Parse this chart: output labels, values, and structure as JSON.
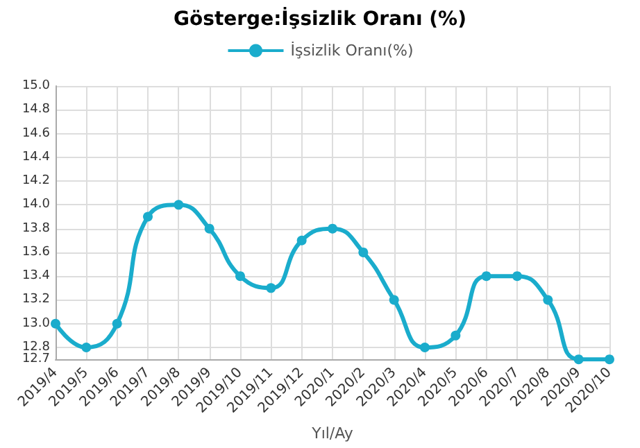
{
  "chart_data": {
    "type": "line",
    "title": "Gösterge:İşsizlik Oranı (%)",
    "xlabel": "Yıl/Ay",
    "categories": [
      "2019/4",
      "2019/5",
      "2019/6",
      "2019/7",
      "2019/8",
      "2019/9",
      "2019/10",
      "2019/11",
      "2019/12",
      "2020/1",
      "2020/2",
      "2020/3",
      "2020/4",
      "2020/5",
      "2020/6",
      "2020/7",
      "2020/8",
      "2020/9",
      "2020/10"
    ],
    "series": [
      {
        "name": "İşsizlik Oranı(%)",
        "color": "#1aaccc",
        "values": [
          13.0,
          12.8,
          13.0,
          13.9,
          14.0,
          13.8,
          13.4,
          13.3,
          13.7,
          13.8,
          13.6,
          13.2,
          12.8,
          12.9,
          13.4,
          13.4,
          13.2,
          12.7,
          12.7
        ]
      }
    ],
    "ylim": [
      12.7,
      15.0
    ],
    "yticks": [
      12.7,
      12.8,
      {
        "value": 13,
        "label": "13.0"
      },
      13.2,
      13.4,
      13.6,
      13.8,
      {
        "value": 14,
        "label": "14.0"
      },
      14.2,
      14.4,
      14.6,
      14.8,
      {
        "value": 15,
        "label": "15.0"
      }
    ],
    "grid": true,
    "legend": "top",
    "marker": "circle",
    "line_style": "solid"
  }
}
